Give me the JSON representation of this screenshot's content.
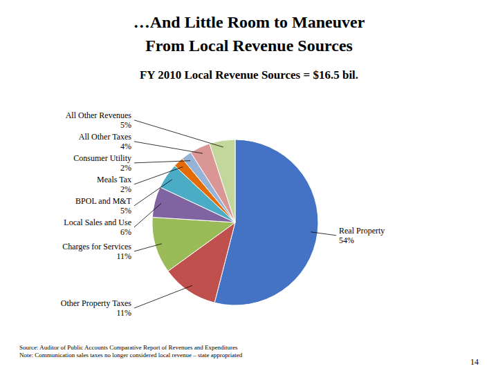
{
  "chart_data": {
    "type": "pie",
    "title": [
      "…And Little Room to Maneuver",
      "From Local Revenue Sources"
    ],
    "subtitle": "FY 2010 Local Revenue Sources = $16.5 bil.",
    "categories": [
      "Real Property",
      "Other Property Taxes",
      "Charges for Services",
      "Local Sales and Use",
      "BPOL and M&T",
      "Meals Tax",
      "Consumer Utility",
      "All Other Taxes",
      "All Other Revenues"
    ],
    "values": [
      54,
      11,
      11,
      6,
      5,
      2,
      2,
      4,
      5
    ],
    "value_labels": [
      "54%",
      "11%",
      "11%",
      "6%",
      "5%",
      "2%",
      "2%",
      "4%",
      "5%"
    ],
    "colors": [
      "#4472C4",
      "#C0504D",
      "#9BBB59",
      "#8064A2",
      "#4BACC6",
      "#E36C09",
      "#95B3D7",
      "#D99694",
      "#C3D69B"
    ],
    "data_labels": true,
    "annotations": [
      "Source:  Auditor of Public Accounts Comparative Report of Revenues and Expenditures",
      "Note: Communication sales taxes no longer considered local revenue – state appropriated",
      "14"
    ]
  }
}
